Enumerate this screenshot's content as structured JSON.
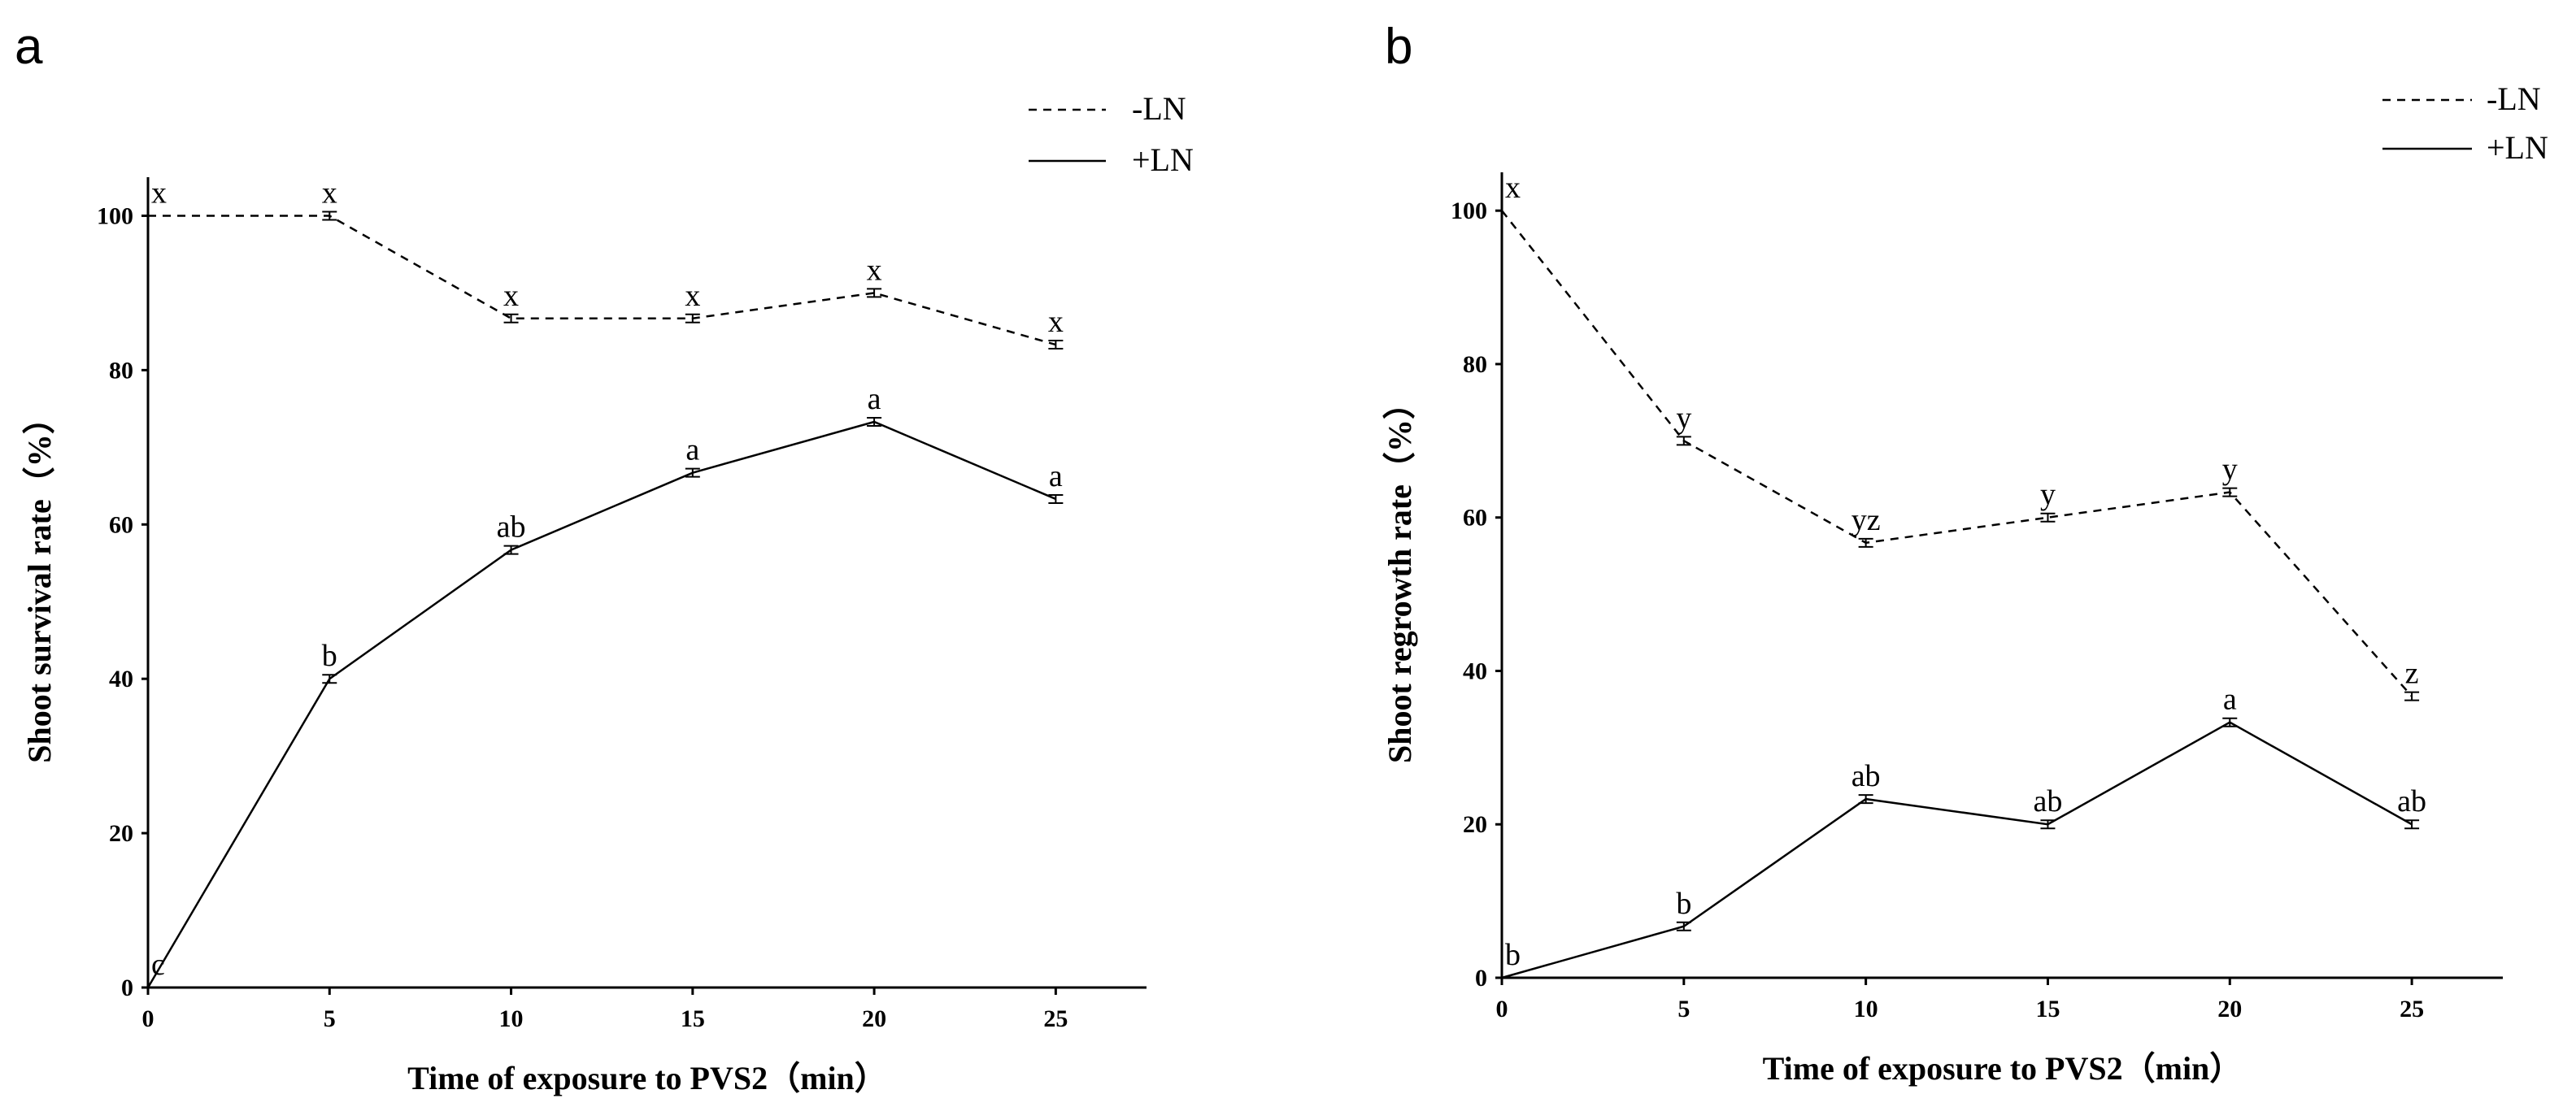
{
  "chart_data": [
    {
      "type": "line",
      "panel_label": "a",
      "xlabel": "Time of exposure to PVS2（min）",
      "ylabel": "Shoot survival rate（%）",
      "xlim": [
        0,
        27.5
      ],
      "ylim": [
        0,
        105
      ],
      "xticks": [
        0,
        5,
        10,
        15,
        20,
        25
      ],
      "yticks": [
        0,
        20,
        40,
        60,
        80,
        100
      ],
      "x": [
        0,
        5,
        10,
        15,
        20,
        25
      ],
      "legend_position": "top-right",
      "series": [
        {
          "name": "-LN",
          "style": "dashed",
          "values": [
            100,
            100,
            86.7,
            86.7,
            90,
            83.3
          ],
          "labels": [
            "x",
            "x",
            "x",
            "x",
            "x",
            "x"
          ]
        },
        {
          "name": "+LN",
          "style": "solid",
          "values": [
            0,
            40,
            56.7,
            66.7,
            73.3,
            63.3
          ],
          "labels": [
            "c",
            "b",
            "ab",
            "a",
            "a",
            "a"
          ]
        }
      ]
    },
    {
      "type": "line",
      "panel_label": "b",
      "xlabel": "Time of exposure to PVS2（min）",
      "ylabel": "Shoot regrowth rate（%）",
      "xlim": [
        0,
        27.5
      ],
      "ylim": [
        0,
        105
      ],
      "xticks": [
        0,
        5,
        10,
        15,
        20,
        25
      ],
      "yticks": [
        0,
        20,
        40,
        60,
        80,
        100
      ],
      "x": [
        0,
        5,
        10,
        15,
        20,
        25
      ],
      "legend_position": "top-right",
      "series": [
        {
          "name": "-LN",
          "style": "dashed",
          "values": [
            100,
            70,
            56.7,
            60,
            63.3,
            36.7
          ],
          "labels": [
            "x",
            "y",
            "yz",
            "y",
            "y",
            "z"
          ]
        },
        {
          "name": "+LN",
          "style": "solid",
          "values": [
            0,
            6.7,
            23.3,
            20,
            33.3,
            20
          ],
          "labels": [
            "b",
            "b",
            "ab",
            "ab",
            "a",
            "ab"
          ]
        }
      ]
    }
  ]
}
